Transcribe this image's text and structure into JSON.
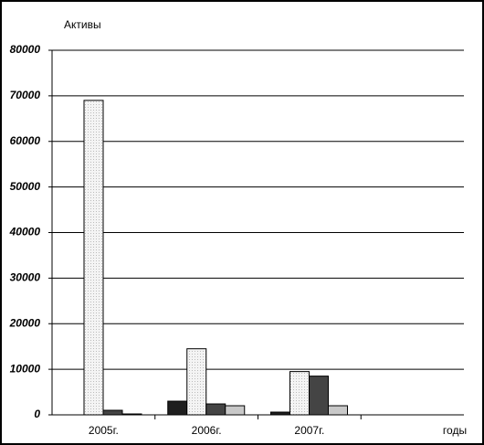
{
  "chart_data": {
    "type": "bar",
    "title": "Активы",
    "x_label": "годы",
    "categories": [
      "2005г.",
      "2006г.",
      "2007г.",
      null
    ],
    "series": [
      {
        "color": "#1e1e1e",
        "values": [
          0,
          3000,
          600,
          null
        ]
      },
      {
        "color": "#f2f2f2",
        "values": [
          69000,
          14500,
          9500,
          null
        ]
      },
      {
        "color": "#444444",
        "values": [
          1000,
          2400,
          8500,
          null
        ]
      },
      {
        "color": "#c8c8c8",
        "values": [
          200,
          2000,
          2000,
          null
        ]
      }
    ],
    "ylim": [
      0,
      80000
    ],
    "yticks": [
      0,
      10000,
      20000,
      30000,
      40000,
      50000,
      60000,
      70000,
      80000
    ],
    "grid": true
  }
}
